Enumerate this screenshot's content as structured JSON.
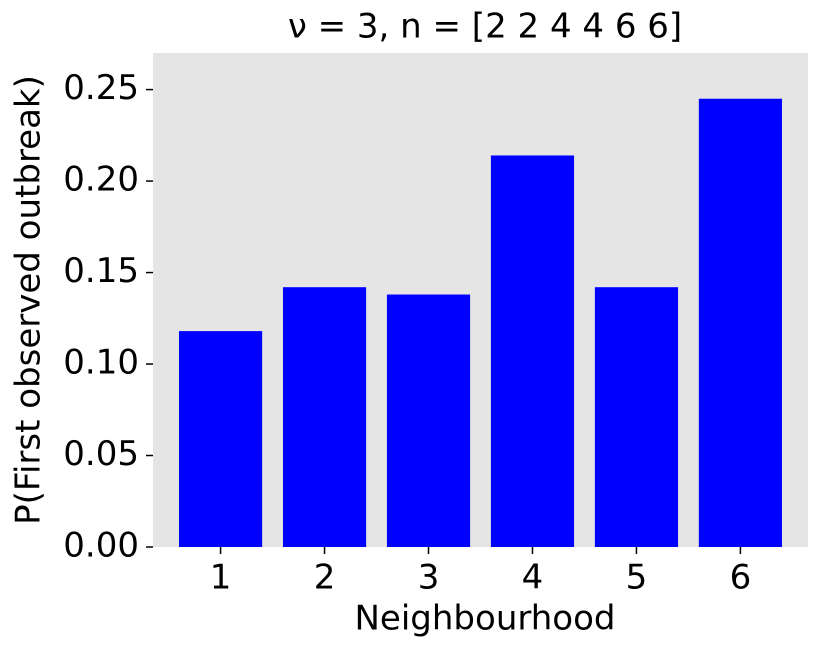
{
  "chart_data": {
    "type": "bar",
    "title": "ν = 3, n = [2 2 4 4 6 6]",
    "x_label": "Neighbourhood",
    "y_label": "P(First observed outbreak)",
    "categories": [
      "1",
      "2",
      "3",
      "4",
      "5",
      "6"
    ],
    "values": [
      0.118,
      0.142,
      0.138,
      0.214,
      0.142,
      0.245
    ],
    "color": "#0000ff",
    "ylim": [
      0,
      0.27
    ],
    "yticks": [
      {
        "value": 0,
        "label": "0.00"
      },
      {
        "value": 0.05,
        "label": "0.05"
      },
      {
        "value": 0.1,
        "label": "0.10"
      },
      {
        "value": 0.15,
        "label": "0.15"
      },
      {
        "value": 0.2,
        "label": "0.20"
      },
      {
        "value": 0.25,
        "label": "0.25"
      }
    ],
    "grid": false
  }
}
